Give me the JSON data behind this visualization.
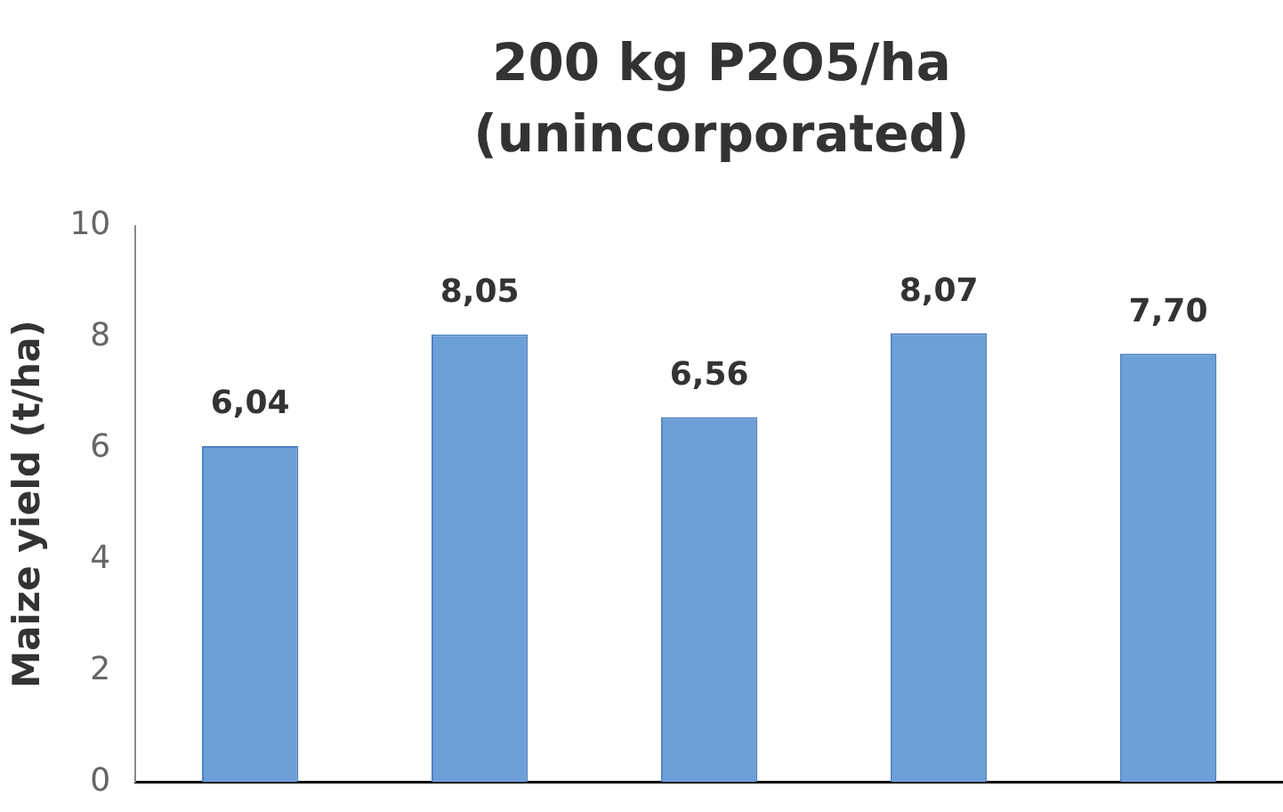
{
  "chart_data": {
    "type": "bar",
    "title": "200 kg P2O5/ha (unincorporated)",
    "ylabel": "Maize yield (t/ha)",
    "categories": [
      null,
      null,
      null,
      null,
      null
    ],
    "values": [
      6.04,
      8.05,
      6.56,
      8.07,
      7.7
    ],
    "value_labels": [
      "6,04",
      "8,05",
      "6,56",
      "8,07",
      "7,70"
    ],
    "color": "#6d9fd8",
    "ylim": [
      0,
      10
    ],
    "yticks": [
      0,
      2,
      4,
      6,
      8,
      10
    ],
    "grid": false,
    "legend": false
  }
}
